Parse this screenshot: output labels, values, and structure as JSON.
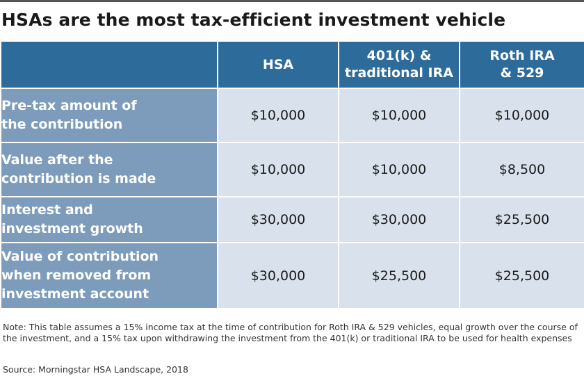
{
  "title": "HSAs are the most tax-efficient investment vehicle",
  "chart_data": {
    "type": "table",
    "columns": [
      {
        "lines": [
          "HSA"
        ]
      },
      {
        "lines": [
          "401(k) &",
          "traditional IRA"
        ]
      },
      {
        "lines": [
          "Roth IRA",
          "& 529"
        ]
      }
    ],
    "rows": [
      {
        "label_lines": [
          "Pre-tax amount of",
          "the contribution"
        ],
        "values": [
          "$10,000",
          "$10,000",
          "$10,000"
        ]
      },
      {
        "label_lines": [
          "Value after the",
          "contribution is made"
        ],
        "values": [
          "$10,000",
          "$10,000",
          "$8,500"
        ]
      },
      {
        "label_lines": [
          "Interest and",
          "investment growth"
        ],
        "values": [
          "$30,000",
          "$30,000",
          "$25,500"
        ]
      },
      {
        "label_lines": [
          "Value of contribution",
          "when removed from",
          "investment account"
        ],
        "values": [
          "$30,000",
          "$25,500",
          "$25,500"
        ]
      }
    ]
  },
  "note": "Note: This table assumes a 15% income tax at the time of contribution for Roth IRA & 529 vehicles, equal growth over the course of the investment, and a 15% tax upon withdrawing the investment from the 401(k) or traditional IRA to be used for health expenses",
  "source": "Source: Morningstar HSA Landscape, 2018"
}
